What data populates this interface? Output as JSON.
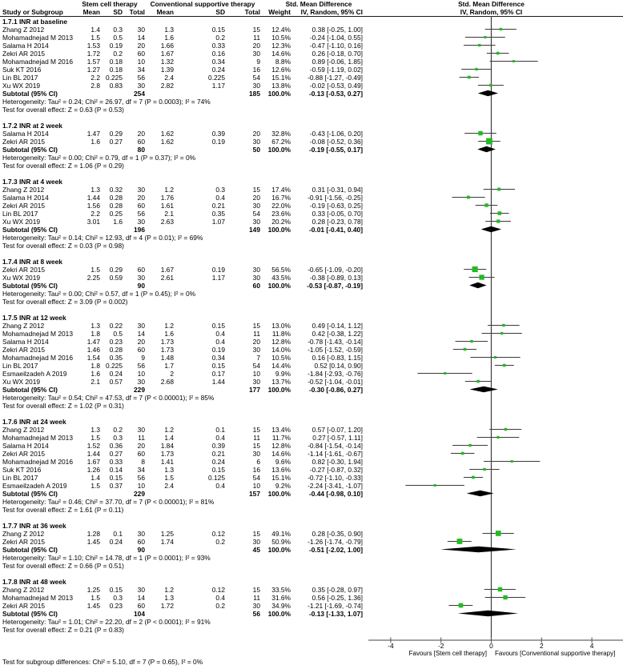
{
  "header": {
    "col_study": "Study or Subgroup",
    "group1": "Stem cell therapy",
    "group2": "Conventional supportive therapy",
    "effect_col": "Std. Mean Difference",
    "col_mean": "Mean",
    "col_sd": "SD",
    "col_total": "Total",
    "col_weight": "Weight",
    "col_ci": "IV, Random, 95% CI",
    "plot_title_line1": "Std. Mean Difference",
    "plot_title_line2": "IV, Random, 95% CI"
  },
  "axis": {
    "ticks": [
      -4,
      -2,
      0,
      2,
      4
    ],
    "favours_left": "Favours [Stem cell therapy]",
    "favours_right": "Favours [Conventional supportive therapy]"
  },
  "footer": {
    "subgroup_test": "Test for subgroup differences: Chi² = 5.10, df = 7 (P = 0.65), I² = 0%"
  },
  "colors": {
    "marker_green": "#22bb22",
    "diamond_black": "#000000",
    "ci_line": "#3a3a3a",
    "zero_line": "#3c3c3c",
    "axis_line": "#808080",
    "tick": "#555555"
  },
  "chart_data": {
    "type": "forest",
    "xlim": [
      -4.9,
      5.25
    ],
    "subtotal_label": "Subtotal (95% CI)",
    "subgroups": [
      {
        "label": "1.7.1 INR at baseline",
        "studies": [
          {
            "name": "Zhang Z 2012",
            "m1": "1.4",
            "sd1": "0.3",
            "n1": "30",
            "m2": "1.3",
            "sd2": "0.15",
            "n2": "15",
            "weight": "12.4%",
            "ci": "0.38 [-0.25, 1.00]",
            "est": 0.38,
            "lo": -0.25,
            "hi": 1.0,
            "w": 12.4
          },
          {
            "name": "Mohamadnejad M 2013",
            "m1": "1.5",
            "sd1": "0.5",
            "n1": "14",
            "m2": "1.6",
            "sd2": "0.2",
            "n2": "11",
            "weight": "10.5%",
            "ci": "-0.24 [-1.04, 0.55]",
            "est": -0.24,
            "lo": -1.04,
            "hi": 0.55,
            "w": 10.5
          },
          {
            "name": "Salama H 2014",
            "m1": "1.53",
            "sd1": "0.19",
            "n1": "20",
            "m2": "1.66",
            "sd2": "0.33",
            "n2": "20",
            "weight": "12.3%",
            "ci": "-0.47 [-1.10, 0.16]",
            "est": -0.47,
            "lo": -1.1,
            "hi": 0.16,
            "w": 12.3
          },
          {
            "name": "Zekri AR 2015",
            "m1": "1.72",
            "sd1": "0.2",
            "n1": "60",
            "m2": "1.67",
            "sd2": "0.16",
            "n2": "30",
            "weight": "14.6%",
            "ci": "0.26 [-0.18, 0.70]",
            "est": 0.26,
            "lo": -0.18,
            "hi": 0.7,
            "w": 14.6
          },
          {
            "name": "Mohamadnejad M 2016",
            "m1": "1.57",
            "sd1": "0.18",
            "n1": "10",
            "m2": "1.32",
            "sd2": "0.34",
            "n2": "9",
            "weight": "8.8%",
            "ci": "0.89 [-0.06, 1.85]",
            "est": 0.89,
            "lo": -0.06,
            "hi": 1.85,
            "w": 8.8
          },
          {
            "name": "Suk KT 2016",
            "m1": "1.27",
            "sd1": "0.18",
            "n1": "34",
            "m2": "1.39",
            "sd2": "0.24",
            "n2": "16",
            "weight": "12.6%",
            "ci": "-0.59 [-1.19, 0.02]",
            "est": -0.59,
            "lo": -1.19,
            "hi": 0.02,
            "w": 12.6
          },
          {
            "name": "Lin BL 2017",
            "m1": "2.2",
            "sd1": "0.225",
            "n1": "56",
            "m2": "2.4",
            "sd2": "0.225",
            "n2": "54",
            "weight": "15.1%",
            "ci": "-0.88 [-1.27, -0.49]",
            "est": -0.88,
            "lo": -1.27,
            "hi": -0.49,
            "w": 15.1
          },
          {
            "name": "Xu WX 2019",
            "m1": "2.8",
            "sd1": "0.83",
            "n1": "30",
            "m2": "2.82",
            "sd2": "1.17",
            "n2": "30",
            "weight": "13.8%",
            "ci": "-0.02 [-0.53, 0.49]",
            "est": -0.02,
            "lo": -0.53,
            "hi": 0.49,
            "w": 13.8
          }
        ],
        "subtotal": {
          "n1": "254",
          "n2": "185",
          "weight": "100.0%",
          "ci": "-0.13 [-0.53, 0.27]",
          "est": -0.13,
          "lo": -0.53,
          "hi": 0.27
        },
        "heterogeneity": "Heterogeneity: Tau² = 0.24; Chi² = 26.97, df = 7 (P = 0.0003); I² = 74%",
        "overall": "Test for overall effect: Z = 0.63 (P = 0.53)"
      },
      {
        "label": "1.7.2 INR at 2 week",
        "studies": [
          {
            "name": "Salama H 2014",
            "m1": "1.47",
            "sd1": "0.29",
            "n1": "20",
            "m2": "1.62",
            "sd2": "0.39",
            "n2": "20",
            "weight": "32.8%",
            "ci": "-0.43 [-1.06, 0.20]",
            "est": -0.43,
            "lo": -1.06,
            "hi": 0.2,
            "w": 32.8
          },
          {
            "name": "Zekri AR 2015",
            "m1": "1.6",
            "sd1": "0.27",
            "n1": "60",
            "m2": "1.62",
            "sd2": "0.19",
            "n2": "30",
            "weight": "67.2%",
            "ci": "-0.08 [-0.52, 0.36]",
            "est": -0.08,
            "lo": -0.52,
            "hi": 0.36,
            "w": 67.2
          }
        ],
        "subtotal": {
          "n1": "80",
          "n2": "50",
          "weight": "100.0%",
          "ci": "-0.19 [-0.55, 0.17]",
          "est": -0.19,
          "lo": -0.55,
          "hi": 0.17
        },
        "heterogeneity": "Heterogeneity: Tau² = 0.00; Chi² = 0.79, df = 1 (P = 0.37); I² = 0%",
        "overall": "Test for overall effect: Z = 1.06 (P = 0.29)"
      },
      {
        "label": "1.7.3 INR at 4 week",
        "studies": [
          {
            "name": "Zhang Z 2012",
            "m1": "1.3",
            "sd1": "0.32",
            "n1": "30",
            "m2": "1.2",
            "sd2": "0.3",
            "n2": "15",
            "weight": "17.4%",
            "ci": "0.31 [-0.31, 0.94]",
            "est": 0.31,
            "lo": -0.31,
            "hi": 0.94,
            "w": 17.4
          },
          {
            "name": "Salama H 2014",
            "m1": "1.44",
            "sd1": "0.28",
            "n1": "20",
            "m2": "1.76",
            "sd2": "0.4",
            "n2": "20",
            "weight": "16.7%",
            "ci": "-0.91 [-1.56, -0.25]",
            "est": -0.91,
            "lo": -1.56,
            "hi": -0.25,
            "w": 16.7
          },
          {
            "name": "Zekri AR 2015",
            "m1": "1.56",
            "sd1": "0.28",
            "n1": "60",
            "m2": "1.61",
            "sd2": "0.21",
            "n2": "30",
            "weight": "22.0%",
            "ci": "-0.19 [-0.63, 0.25]",
            "est": -0.19,
            "lo": -0.63,
            "hi": 0.25,
            "w": 22.0
          },
          {
            "name": "Lin BL 2017",
            "m1": "2.2",
            "sd1": "0.25",
            "n1": "56",
            "m2": "2.1",
            "sd2": "0.35",
            "n2": "54",
            "weight": "23.6%",
            "ci": "0.33 [-0.05, 0.70]",
            "est": 0.33,
            "lo": -0.05,
            "hi": 0.7,
            "w": 23.6
          },
          {
            "name": "Xu WX 2019",
            "m1": "3.01",
            "sd1": "1.6",
            "n1": "30",
            "m2": "2.63",
            "sd2": "1.07",
            "n2": "30",
            "weight": "20.2%",
            "ci": "0.28 [-0.23, 0.78]",
            "est": 0.28,
            "lo": -0.23,
            "hi": 0.78,
            "w": 20.2
          }
        ],
        "subtotal": {
          "n1": "196",
          "n2": "149",
          "weight": "100.0%",
          "ci": "-0.01 [-0.41, 0.40]",
          "est": -0.01,
          "lo": -0.41,
          "hi": 0.4
        },
        "heterogeneity": "Heterogeneity: Tau² = 0.14; Chi² = 12.93, df = 4 (P = 0.01); I² = 69%",
        "overall": "Test for overall effect: Z = 0.03 (P = 0.98)"
      },
      {
        "label": "1.7.4 INR at 8 week",
        "studies": [
          {
            "name": "Zekri AR 2015",
            "m1": "1.5",
            "sd1": "0.29",
            "n1": "60",
            "m2": "1.67",
            "sd2": "0.19",
            "n2": "30",
            "weight": "56.5%",
            "ci": "-0.65 [-1.09, -0.20]",
            "est": -0.65,
            "lo": -1.09,
            "hi": -0.2,
            "w": 56.5
          },
          {
            "name": "Xu WX 2019",
            "m1": "2.25",
            "sd1": "0.59",
            "n1": "30",
            "m2": "2.61",
            "sd2": "1.17",
            "n2": "30",
            "weight": "43.5%",
            "ci": "-0.38 [-0.89, 0.13]",
            "est": -0.38,
            "lo": -0.89,
            "hi": 0.13,
            "w": 43.5
          }
        ],
        "subtotal": {
          "n1": "90",
          "n2": "60",
          "weight": "100.0%",
          "ci": "-0.53 [-0.87, -0.19]",
          "est": -0.53,
          "lo": -0.87,
          "hi": -0.19
        },
        "heterogeneity": "Heterogeneity: Tau² = 0.00; Chi² = 0.57, df = 1 (P = 0.45); I² = 0%",
        "overall": "Test for overall effect: Z = 3.09 (P = 0.002)"
      },
      {
        "label": "1.7.5 INR at 12 week",
        "studies": [
          {
            "name": "Zhang Z 2012",
            "m1": "1.3",
            "sd1": "0.22",
            "n1": "30",
            "m2": "1.2",
            "sd2": "0.15",
            "n2": "15",
            "weight": "13.0%",
            "ci": "0.49 [-0.14, 1.12]",
            "est": 0.49,
            "lo": -0.14,
            "hi": 1.12,
            "w": 13.0
          },
          {
            "name": "Mohamadnejad M 2013",
            "m1": "1.8",
            "sd1": "0.5",
            "n1": "14",
            "m2": "1.6",
            "sd2": "0.4",
            "n2": "11",
            "weight": "11.8%",
            "ci": "0.42 [-0.38, 1.22]",
            "est": 0.42,
            "lo": -0.38,
            "hi": 1.22,
            "w": 11.8
          },
          {
            "name": "Salama H 2014",
            "m1": "1.47",
            "sd1": "0.23",
            "n1": "20",
            "m2": "1.73",
            "sd2": "0.4",
            "n2": "20",
            "weight": "12.8%",
            "ci": "-0.78 [-1.43, -0.14]",
            "est": -0.78,
            "lo": -1.43,
            "hi": -0.14,
            "w": 12.8
          },
          {
            "name": "Zekri AR 2015",
            "m1": "1.46",
            "sd1": "0.28",
            "n1": "60",
            "m2": "1.73",
            "sd2": "0.19",
            "n2": "30",
            "weight": "14.0%",
            "ci": "-1.05 [-1.52, -0.59]",
            "est": -1.05,
            "lo": -1.52,
            "hi": -0.59,
            "w": 14.0
          },
          {
            "name": "Mohamadnejad M 2016",
            "m1": "1.54",
            "sd1": "0.35",
            "n1": "9",
            "m2": "1.48",
            "sd2": "0.34",
            "n2": "7",
            "weight": "10.5%",
            "ci": "0.16 [-0.83, 1.15]",
            "est": 0.16,
            "lo": -0.83,
            "hi": 1.15,
            "w": 10.5
          },
          {
            "name": "Lin BL 2017",
            "m1": "1.8",
            "sd1": "0.225",
            "n1": "56",
            "m2": "1.7",
            "sd2": "0.15",
            "n2": "54",
            "weight": "14.4%",
            "ci": "0.52 [0.14, 0.90]",
            "est": 0.52,
            "lo": 0.14,
            "hi": 0.9,
            "w": 14.4
          },
          {
            "name": "Esmaeilzadeh A 2019",
            "m1": "1.6",
            "sd1": "0.24",
            "n1": "10",
            "m2": "2",
            "sd2": "0.17",
            "n2": "10",
            "weight": "9.9%",
            "ci": "-1.84 [-2.93, -0.76]",
            "est": -1.84,
            "lo": -2.93,
            "hi": -0.76,
            "w": 9.9
          },
          {
            "name": "Xu WX 2019",
            "m1": "2.1",
            "sd1": "0.57",
            "n1": "30",
            "m2": "2.68",
            "sd2": "1.44",
            "n2": "30",
            "weight": "13.7%",
            "ci": "-0.52 [-1.04, -0.01]",
            "est": -0.52,
            "lo": -1.04,
            "hi": -0.01,
            "w": 13.7
          }
        ],
        "subtotal": {
          "n1": "229",
          "n2": "177",
          "weight": "100.0%",
          "ci": "-0.30 [-0.86, 0.27]",
          "est": -0.3,
          "lo": -0.86,
          "hi": 0.27
        },
        "heterogeneity": "Heterogeneity: Tau² = 0.54; Chi² = 47.53, df = 7 (P < 0.00001); I² = 85%",
        "overall": "Test for overall effect: Z = 1.02 (P = 0.31)"
      },
      {
        "label": "1.7.6 INR at 24 week",
        "studies": [
          {
            "name": "Zhang Z 2012",
            "m1": "1.3",
            "sd1": "0.2",
            "n1": "30",
            "m2": "1.2",
            "sd2": "0.1",
            "n2": "15",
            "weight": "13.4%",
            "ci": "0.57 [-0.07, 1.20]",
            "est": 0.57,
            "lo": -0.07,
            "hi": 1.2,
            "w": 13.4
          },
          {
            "name": "Mohamadnejad M 2013",
            "m1": "1.5",
            "sd1": "0.3",
            "n1": "11",
            "m2": "1.4",
            "sd2": "0.4",
            "n2": "11",
            "weight": "11.7%",
            "ci": "0.27 [-0.57, 1.11]",
            "est": 0.27,
            "lo": -0.57,
            "hi": 1.11,
            "w": 11.7
          },
          {
            "name": "Salama H 2014",
            "m1": "1.52",
            "sd1": "0.36",
            "n1": "20",
            "m2": "1.84",
            "sd2": "0.39",
            "n2": "15",
            "weight": "12.8%",
            "ci": "-0.84 [-1.54, -0.14]",
            "est": -0.84,
            "lo": -1.54,
            "hi": -0.14,
            "w": 12.8
          },
          {
            "name": "Zekri AR 2015",
            "m1": "1.44",
            "sd1": "0.27",
            "n1": "60",
            "m2": "1.73",
            "sd2": "0.21",
            "n2": "30",
            "weight": "14.6%",
            "ci": "-1.14 [-1.61, -0.67]",
            "est": -1.14,
            "lo": -1.61,
            "hi": -0.67,
            "w": 14.6
          },
          {
            "name": "Mohamadnejad M 2016",
            "m1": "1.67",
            "sd1": "0.33",
            "n1": "8",
            "m2": "1.41",
            "sd2": "0.24",
            "n2": "6",
            "weight": "9.6%",
            "ci": "0.82 [-0.30, 1.94]",
            "est": 0.82,
            "lo": -0.3,
            "hi": 1.94,
            "w": 9.6
          },
          {
            "name": "Suk KT 2016",
            "m1": "1.26",
            "sd1": "0.14",
            "n1": "34",
            "m2": "1.3",
            "sd2": "0.15",
            "n2": "16",
            "weight": "13.6%",
            "ci": "-0.27 [-0.87, 0.32]",
            "est": -0.27,
            "lo": -0.87,
            "hi": 0.32,
            "w": 13.6
          },
          {
            "name": "Lin BL 2017",
            "m1": "1.4",
            "sd1": "0.15",
            "n1": "56",
            "m2": "1.5",
            "sd2": "0.125",
            "n2": "54",
            "weight": "15.1%",
            "ci": "-0.72 [-1.10, -0.33]",
            "est": -0.72,
            "lo": -1.1,
            "hi": -0.33,
            "w": 15.1
          },
          {
            "name": "Esmaeilzadeh A 2019",
            "m1": "1.5",
            "sd1": "0.37",
            "n1": "10",
            "m2": "2.4",
            "sd2": "0.4",
            "n2": "10",
            "weight": "9.2%",
            "ci": "-2.24 [-3.41, -1.07]",
            "est": -2.24,
            "lo": -3.41,
            "hi": -1.07,
            "w": 9.2
          }
        ],
        "subtotal": {
          "n1": "229",
          "n2": "157",
          "weight": "100.0%",
          "ci": "-0.44 [-0.98, 0.10]",
          "est": -0.44,
          "lo": -0.98,
          "hi": 0.1
        },
        "heterogeneity": "Heterogeneity: Tau² = 0.46; Chi² = 37.70, df = 7 (P < 0.00001); I² = 81%",
        "overall": "Test for overall effect: Z = 1.61 (P = 0.11)"
      },
      {
        "label": "1.7.7 INR at 36 week",
        "studies": [
          {
            "name": "Zhang Z 2012",
            "m1": "1.28",
            "sd1": "0.1",
            "n1": "30",
            "m2": "1.25",
            "sd2": "0.12",
            "n2": "15",
            "weight": "49.1%",
            "ci": "0.28 [-0.35, 0.90]",
            "est": 0.28,
            "lo": -0.35,
            "hi": 0.9,
            "w": 49.1
          },
          {
            "name": "Zekri AR 2015",
            "m1": "1.45",
            "sd1": "0.24",
            "n1": "60",
            "m2": "1.74",
            "sd2": "0.2",
            "n2": "30",
            "weight": "50.9%",
            "ci": "-1.26 [-1.74, -0.79]",
            "est": -1.26,
            "lo": -1.74,
            "hi": -0.79,
            "w": 50.9
          }
        ],
        "subtotal": {
          "n1": "90",
          "n2": "45",
          "weight": "100.0%",
          "ci": "-0.51 [-2.02, 1.00]",
          "est": -0.51,
          "lo": -2.02,
          "hi": 1.0
        },
        "heterogeneity": "Heterogeneity: Tau² = 1.10; Chi² = 14.78, df = 1 (P = 0.0001); I² = 93%",
        "overall": "Test for overall effect: Z = 0.66 (P = 0.51)"
      },
      {
        "label": "1.7.8 INR at 48 week",
        "studies": [
          {
            "name": "Zhang Z 2012",
            "m1": "1.25",
            "sd1": "0.15",
            "n1": "30",
            "m2": "1.2",
            "sd2": "0.12",
            "n2": "15",
            "weight": "33.5%",
            "ci": "0.35 [-0.28, 0.97]",
            "est": 0.35,
            "lo": -0.28,
            "hi": 0.97,
            "w": 33.5
          },
          {
            "name": "Mohamadnejad M 2013",
            "m1": "1.5",
            "sd1": "0.3",
            "n1": "14",
            "m2": "1.3",
            "sd2": "0.4",
            "n2": "11",
            "weight": "31.6%",
            "ci": "0.56 [-0.25, 1.36]",
            "est": 0.56,
            "lo": -0.25,
            "hi": 1.36,
            "w": 31.6
          },
          {
            "name": "Zekri AR 2015",
            "m1": "1.45",
            "sd1": "0.23",
            "n1": "60",
            "m2": "1.72",
            "sd2": "0.2",
            "n2": "30",
            "weight": "34.9%",
            "ci": "-1.21 [-1.69, -0.74]",
            "est": -1.21,
            "lo": -1.69,
            "hi": -0.74,
            "w": 34.9
          }
        ],
        "subtotal": {
          "n1": "104",
          "n2": "56",
          "weight": "100.0%",
          "ci": "-0.13 [-1.33, 1.07]",
          "est": -0.13,
          "lo": -1.33,
          "hi": 1.07
        },
        "heterogeneity": "Heterogeneity: Tau² = 1.01; Chi² = 22.20, df = 2 (P < 0.0001); I² = 91%",
        "overall": "Test for overall effect: Z = 0.21 (P = 0.83)"
      }
    ]
  }
}
